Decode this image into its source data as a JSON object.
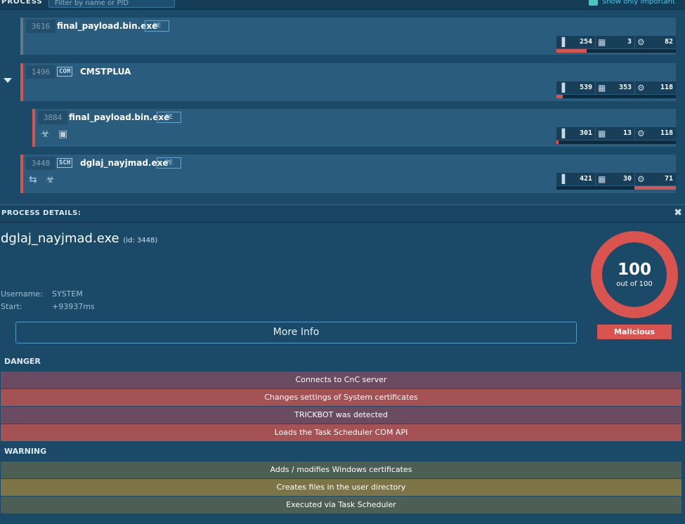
{
  "topbar": {
    "label": "PROCESS",
    "filter_placeholder": "Filter by name or PID",
    "show_important_label": "Show only important"
  },
  "processes": [
    {
      "pid": "3616",
      "badge": "",
      "name": "final_payload.bin.exe",
      "type": "PE",
      "icons": "",
      "stats": {
        "files": "254",
        "registry": "3",
        "modules": "82"
      },
      "bar_fill": 0.25,
      "bar_side": "left"
    },
    {
      "pid": "1496",
      "badge": "COM",
      "name": "CMSTPLUA",
      "type": "",
      "icons": "",
      "stats": {
        "files": "539",
        "registry": "353",
        "modules": "118"
      },
      "bar_fill": 0.05,
      "bar_side": "left"
    },
    {
      "pid": "3884",
      "badge": "",
      "name": "final_payload.bin.exe",
      "type": "PE",
      "icons": "☣ ▣",
      "stats": {
        "files": "301",
        "registry": "13",
        "modules": "118"
      },
      "bar_fill": 0.02,
      "bar_side": "left"
    },
    {
      "pid": "3448",
      "badge": "SCH",
      "name": "dglaj_nayjmad.exe",
      "type": "PE",
      "icons": "⇆ ☣",
      "stats": {
        "files": "421",
        "registry": "30",
        "modules": "71"
      },
      "bar_fill": 0.35,
      "bar_side": "right"
    }
  ],
  "details": {
    "header": "PROCESS DETAILS:",
    "close": "✖",
    "name": "dglaj_nayjmad.exe",
    "id_label": "(id: 3448)",
    "username_label": "Username:",
    "username_value": "SYSTEM",
    "start_label": "Start:",
    "start_value": "+93937ms",
    "more_info": "More Info",
    "score": "100",
    "score_outof": "out of 100",
    "verdict": "Malicious"
  },
  "danger": {
    "label": "DANGER",
    "items": [
      "Connects to CnC server",
      "Changes settings of System certificates",
      "TRICKBOT was detected",
      "Loads the Task Scheduler COM API"
    ]
  },
  "warning": {
    "label": "WARNING",
    "items": [
      "Adds / modifies Windows certificates",
      "Creates files in the user directory",
      "Executed via Task Scheduler"
    ]
  },
  "colors": {
    "danger": "#d9534f",
    "background": "#1b4a68"
  }
}
